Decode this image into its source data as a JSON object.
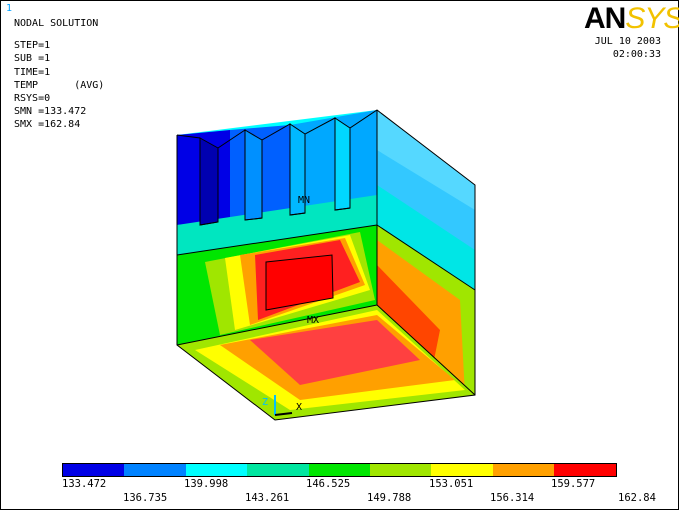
{
  "window_number": "1",
  "title": "NODAL SOLUTION",
  "info_lines": [
    "STEP=1",
    "SUB =1",
    "TIME=1",
    "TEMP      (AVG)",
    "RSYS=0",
    "SMN =133.472",
    "SMX =162.84"
  ],
  "logo": {
    "an": "AN",
    "sys": "SYS"
  },
  "date": "JUL 10 2003",
  "time": "02:00:33",
  "markers": {
    "min": "MN",
    "max": "MX"
  },
  "triad": {
    "z": "Z",
    "x": "X"
  },
  "legend": {
    "colors": [
      "#0000e6",
      "#0082ff",
      "#00ffff",
      "#00e6a0",
      "#00e600",
      "#a0e600",
      "#ffff00",
      "#ffa000",
      "#ff0000"
    ],
    "values": [
      "133.472",
      "136.735",
      "139.998",
      "143.261",
      "146.525",
      "149.788",
      "153.051",
      "156.314",
      "159.577",
      "162.84"
    ]
  }
}
